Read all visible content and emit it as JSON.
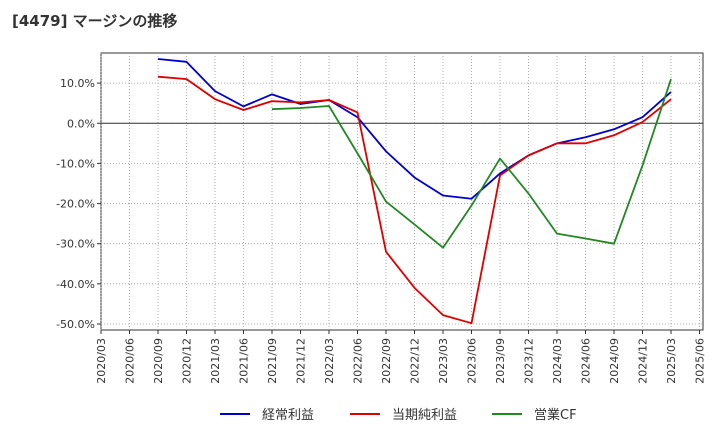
{
  "chart_data": {
    "type": "line",
    "title": "[4479]  マージンの推移",
    "xlabel": "",
    "ylabel": "",
    "x": [
      "2020/03",
      "2020/06",
      "2020/09",
      "2020/12",
      "2021/03",
      "2021/06",
      "2021/09",
      "2021/12",
      "2022/03",
      "2022/06",
      "2022/09",
      "2022/12",
      "2023/03",
      "2023/06",
      "2023/09",
      "2023/12",
      "2024/03",
      "2024/06",
      "2024/09",
      "2024/12",
      "2025/03",
      "2025/06"
    ],
    "ylim": [
      -50,
      17.5
    ],
    "yticks": [
      10,
      0,
      -10,
      -20,
      -30,
      -40,
      -50
    ],
    "ytick_labels": [
      "10.0%",
      "0.0%",
      "-10.0%",
      "-20.0%",
      "-30.0%",
      "-40.0%",
      "-50.0%"
    ],
    "grid": true,
    "legend_position": "bottom",
    "series": [
      {
        "name": "経常利益",
        "color": "#0000cc",
        "values": [
          null,
          null,
          16.0,
          15.3,
          8.0,
          4.2,
          7.2,
          4.8,
          5.8,
          1.5,
          -7.0,
          -13.5,
          -18.0,
          -18.8,
          -12.5,
          -8.0,
          -5.0,
          -3.5,
          -1.5,
          1.5,
          7.8,
          null
        ]
      },
      {
        "name": "当期純利益",
        "color": "#dd0000",
        "values": [
          null,
          null,
          11.6,
          11.0,
          6.0,
          3.3,
          5.5,
          5.2,
          5.8,
          2.7,
          -32.0,
          -41.0,
          -47.8,
          -49.8,
          -13.0,
          -8.0,
          -5.0,
          -5.0,
          -3.0,
          0.3,
          6.0,
          null
        ]
      },
      {
        "name": "営業CF",
        "color": "#228822",
        "values": [
          null,
          null,
          null,
          null,
          null,
          null,
          3.5,
          3.8,
          4.3,
          -7.5,
          -19.5,
          -25.2,
          -31.0,
          -20.5,
          -8.8,
          -17.5,
          -27.5,
          -28.7,
          -30.0,
          -10.5,
          11.0,
          null
        ]
      }
    ]
  }
}
